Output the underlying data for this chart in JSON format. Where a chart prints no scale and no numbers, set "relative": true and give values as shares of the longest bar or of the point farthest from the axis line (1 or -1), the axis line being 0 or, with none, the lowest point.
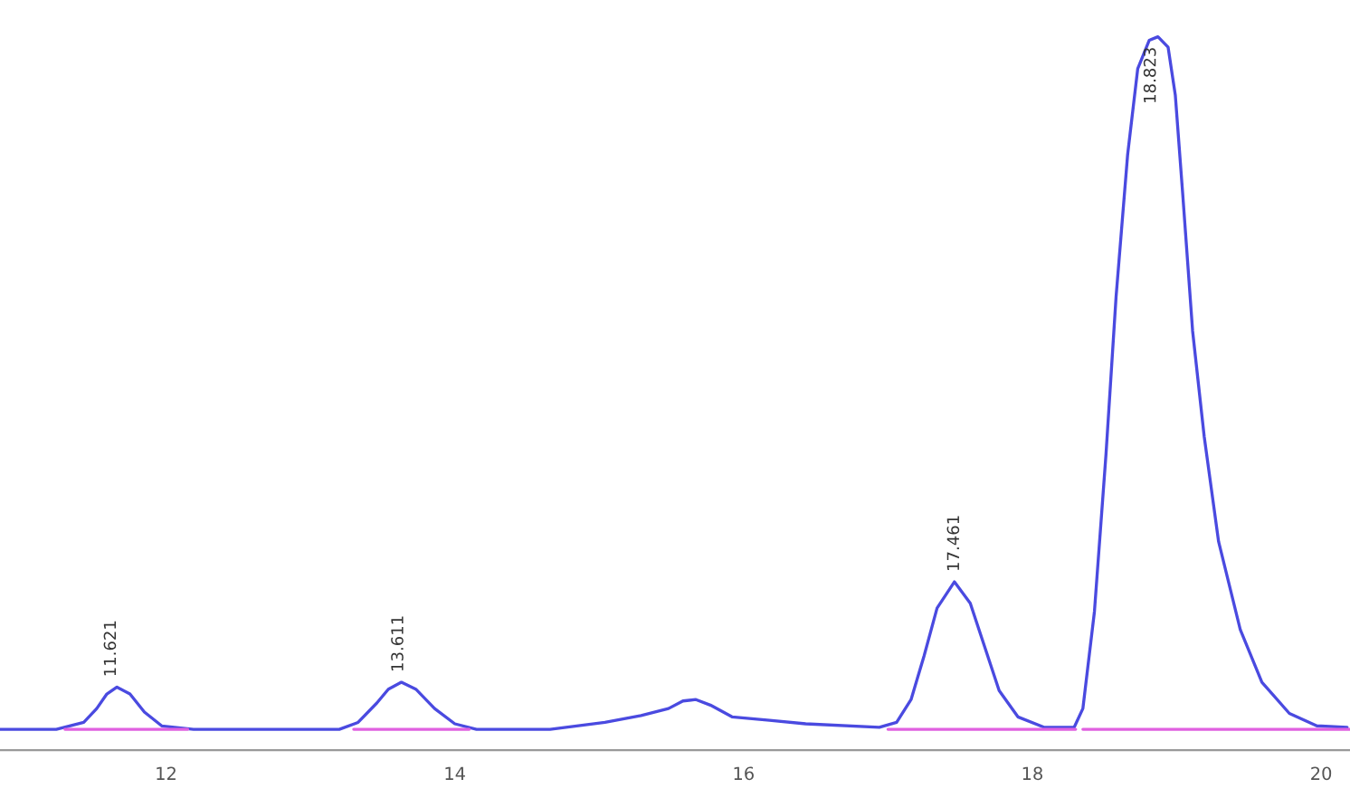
{
  "chart_data": {
    "type": "line",
    "relative": true,
    "xlim": [
      10.85,
      20.2
    ],
    "xticks": [
      12,
      14,
      16,
      18,
      20
    ],
    "tick_labels": "x",
    "grid": false,
    "marker": "none",
    "line_style": "solid",
    "series": [
      {
        "color": "#4a4ae0",
        "x": [
          10.85,
          11.24,
          11.43,
          11.52,
          11.59,
          11.66,
          11.75,
          11.85,
          11.97,
          12.19,
          13.2,
          13.33,
          13.46,
          13.54,
          13.63,
          13.73,
          13.86,
          14.0,
          14.15,
          14.66,
          15.04,
          15.29,
          15.48,
          15.58,
          15.67,
          15.77,
          15.92,
          16.18,
          16.43,
          16.94,
          17.06,
          17.16,
          17.25,
          17.34,
          17.46,
          17.57,
          17.67,
          17.77,
          17.9,
          18.08,
          18.29,
          18.35,
          18.43,
          18.51,
          18.58,
          18.66,
          18.73,
          18.81,
          18.87,
          18.94,
          18.99,
          19.04,
          19.11,
          19.19,
          19.29,
          19.44,
          19.59,
          19.78,
          19.97,
          20.18
        ],
        "values": [
          0,
          0,
          0.01,
          0.03,
          0.051,
          0.061,
          0.051,
          0.025,
          0.005,
          0,
          0,
          0.01,
          0.038,
          0.058,
          0.068,
          0.058,
          0.03,
          0.008,
          0,
          0,
          0.01,
          0.02,
          0.03,
          0.041,
          0.043,
          0.035,
          0.018,
          0.013,
          0.008,
          0.003,
          0.01,
          0.043,
          0.106,
          0.175,
          0.213,
          0.182,
          0.119,
          0.056,
          0.018,
          0.003,
          0.003,
          0.03,
          0.17,
          0.397,
          0.625,
          0.83,
          0.954,
          0.995,
          1.0,
          0.985,
          0.916,
          0.777,
          0.575,
          0.423,
          0.271,
          0.144,
          0.068,
          0.023,
          0.005,
          0.003
        ]
      },
      {
        "color": "#e060e0",
        "x": [
          11.3,
          12.15,
          12.16,
          13.3,
          14.1,
          14.11,
          17.0,
          18.3,
          18.33,
          18.35,
          20.2
        ],
        "values": [
          0,
          0,
          null,
          0,
          0,
          null,
          0,
          0,
          null,
          0,
          0
        ]
      }
    ],
    "annotations": [
      {
        "text": "11.621",
        "x": 11.621,
        "y": 0.061
      },
      {
        "text": "13.611",
        "x": 13.611,
        "y": 0.068
      },
      {
        "text": "17.461",
        "x": 17.461,
        "y": 0.213
      },
      {
        "text": "18.823",
        "x": 18.823,
        "y": 1.0
      }
    ]
  }
}
